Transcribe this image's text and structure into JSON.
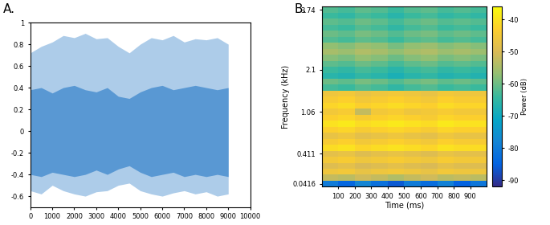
{
  "chart_data": [
    {
      "type": "area",
      "title": "A.",
      "x": [
        0,
        500,
        1000,
        1500,
        2000,
        2500,
        3000,
        3500,
        4000,
        4500,
        5000,
        5500,
        6000,
        6500,
        7000,
        7500,
        8000,
        8500,
        9000
      ],
      "outer_max": [
        0.72,
        0.78,
        0.82,
        0.88,
        0.86,
        0.9,
        0.85,
        0.86,
        0.78,
        0.72,
        0.8,
        0.86,
        0.84,
        0.88,
        0.82,
        0.85,
        0.84,
        0.86,
        0.8
      ],
      "outer_min": [
        -0.55,
        -0.58,
        -0.5,
        -0.55,
        -0.58,
        -0.6,
        -0.56,
        -0.55,
        -0.5,
        -0.48,
        -0.55,
        -0.58,
        -0.6,
        -0.57,
        -0.55,
        -0.58,
        -0.56,
        -0.6,
        -0.58
      ],
      "inner_max": [
        0.38,
        0.4,
        0.35,
        0.4,
        0.42,
        0.38,
        0.36,
        0.4,
        0.32,
        0.3,
        0.36,
        0.4,
        0.42,
        0.38,
        0.4,
        0.42,
        0.4,
        0.38,
        0.4
      ],
      "inner_min": [
        -0.4,
        -0.42,
        -0.38,
        -0.4,
        -0.42,
        -0.4,
        -0.36,
        -0.4,
        -0.35,
        -0.32,
        -0.38,
        -0.42,
        -0.4,
        -0.38,
        -0.42,
        -0.4,
        -0.42,
        -0.4,
        -0.42
      ],
      "color": "#4a8fd0",
      "xlim": [
        0,
        10000
      ],
      "xticks": [
        0,
        1000,
        2000,
        3000,
        4000,
        5000,
        6000,
        7000,
        8000,
        9000,
        10000
      ],
      "ylim": [
        -0.7,
        1
      ],
      "yticks": [
        -0.6,
        -0.4,
        -0.2,
        0,
        0.2,
        0.4,
        0.6,
        0.8,
        1
      ]
    },
    {
      "type": "heatmap",
      "title": "B.",
      "xlabel": "Time (ms)",
      "ylabel": "Frequency (kHz)",
      "xlim": [
        0,
        1000
      ],
      "xticks": [
        100,
        200,
        300,
        400,
        500,
        600,
        700,
        800,
        900
      ],
      "time_edges": [
        0,
        100,
        200,
        300,
        400,
        500,
        600,
        700,
        800,
        900,
        1000
      ],
      "categories": [
        "0.0416",
        null,
        null,
        null,
        null,
        "0.411",
        null,
        null,
        null,
        null,
        null,
        null,
        "1.06",
        null,
        null,
        null,
        null,
        null,
        null,
        "2.1",
        null,
        null,
        null,
        null,
        null,
        null,
        null,
        null,
        null,
        "3.74"
      ],
      "cells": [
        [
          -80,
          -84,
          -78,
          -82,
          -86,
          -80,
          -83,
          -79,
          -85,
          -81
        ],
        [
          -52,
          -53,
          -51,
          -52,
          -54,
          -52,
          -51,
          -53,
          -52,
          -53
        ],
        [
          -46,
          -45,
          -47,
          -46,
          -45,
          -46,
          -47,
          -45,
          -46,
          -46
        ],
        [
          -49,
          -48,
          -50,
          -49,
          -48,
          -49,
          -50,
          -48,
          -49,
          -49
        ],
        [
          -45,
          -44,
          -46,
          -45,
          -44,
          -45,
          -46,
          -44,
          -45,
          -45
        ],
        [
          -48,
          -47,
          -49,
          -48,
          -47,
          -48,
          -49,
          -47,
          -48,
          -48
        ],
        [
          -41,
          -40,
          -42,
          -41,
          -40,
          -41,
          -42,
          -40,
          -41,
          -41
        ],
        [
          -44,
          -43,
          -45,
          -44,
          -43,
          -44,
          -45,
          -43,
          -44,
          -44
        ],
        [
          -47,
          -46,
          -48,
          -47,
          -46,
          -47,
          -48,
          -46,
          -47,
          -47
        ],
        [
          -43,
          -42,
          -44,
          -43,
          -42,
          -43,
          -44,
          -42,
          -43,
          -43
        ],
        [
          -40,
          -39,
          -41,
          -40,
          -39,
          -40,
          -41,
          -39,
          -40,
          -40
        ],
        [
          -43,
          -42,
          -44,
          -43,
          -42,
          -43,
          -44,
          -42,
          -43,
          -43
        ],
        [
          -45,
          -44,
          -52,
          -45,
          -44,
          -46,
          -45,
          -44,
          -45,
          -45
        ],
        [
          -42,
          -41,
          -43,
          -42,
          -41,
          -42,
          -43,
          -41,
          -42,
          -42
        ],
        [
          -44,
          -43,
          -45,
          -44,
          -43,
          -44,
          -45,
          -43,
          -44,
          -44
        ],
        [
          -46,
          -45,
          -47,
          -46,
          -45,
          -46,
          -47,
          -45,
          -46,
          -46
        ],
        [
          -63,
          -64,
          -62,
          -63,
          -65,
          -63,
          -62,
          -64,
          -63,
          -64
        ],
        [
          -60,
          -61,
          -59,
          -60,
          -62,
          -60,
          -59,
          -61,
          -60,
          -61
        ],
        [
          -66,
          -67,
          -65,
          -66,
          -68,
          -66,
          -65,
          -67,
          -66,
          -67
        ],
        [
          -64,
          -65,
          -63,
          -64,
          -66,
          -64,
          -63,
          -65,
          -64,
          -65
        ],
        [
          -61,
          -62,
          -60,
          -61,
          -63,
          -61,
          -60,
          -62,
          -61,
          -62
        ],
        [
          -58,
          -59,
          -57,
          -58,
          -60,
          -58,
          -57,
          -59,
          -58,
          -59
        ],
        [
          -55,
          -56,
          -54,
          -55,
          -57,
          -55,
          -54,
          -56,
          -55,
          -56
        ],
        [
          -57,
          -58,
          -56,
          -57,
          -59,
          -57,
          -56,
          -58,
          -57,
          -58
        ],
        [
          -62,
          -63,
          -61,
          -62,
          -64,
          -62,
          -61,
          -63,
          -62,
          -63
        ],
        [
          -60,
          -61,
          -59,
          -60,
          -62,
          -60,
          -59,
          -61,
          -60,
          -61
        ],
        [
          -63,
          -64,
          -62,
          -63,
          -65,
          -63,
          -62,
          -64,
          -63,
          -64
        ],
        [
          -61,
          -62,
          -60,
          -61,
          -63,
          -61,
          -60,
          -62,
          -61,
          -62
        ],
        [
          -64,
          -65,
          -63,
          -64,
          -66,
          -64,
          -63,
          -65,
          -64,
          -65
        ],
        [
          -62,
          -63,
          -61,
          -62,
          -64,
          -62,
          -61,
          -63,
          -62,
          -63
        ]
      ],
      "colorbar": {
        "label": "Power (dB)",
        "range": [
          -92,
          -36
        ],
        "ticks": [
          -90,
          -80,
          -70,
          -60,
          -50,
          -40
        ]
      }
    }
  ]
}
